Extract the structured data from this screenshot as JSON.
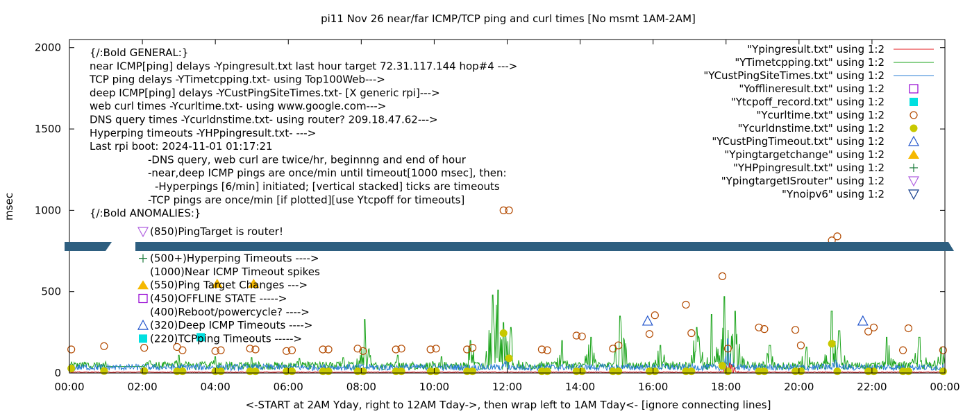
{
  "chart_data": {
    "type": "scatter",
    "title": "pi11 Nov 26  near/far ICMP/TCP ping and curl times [No msmt 1AM-2AM]",
    "xlabel": "<-START at 2AM Yday, right to 12AM Tday->, then wrap left to 1AM Tday<- [ignore connecting lines]",
    "ylabel": "msec",
    "xlim": [
      0,
      24
    ],
    "ylim": [
      0,
      2050
    ],
    "x_ticks": [
      "00:00",
      "02:00",
      "04:00",
      "06:00",
      "08:00",
      "10:00",
      "12:00",
      "14:00",
      "16:00",
      "18:00",
      "20:00",
      "22:00",
      "00:00"
    ],
    "y_ticks": [
      0,
      500,
      1000,
      1500,
      2000
    ],
    "grid": false,
    "legend_position": "top-right",
    "legend": [
      {
        "label": "\"Ypingresult.txt\" using 1:2",
        "marker": "line",
        "color": "#e41a1c"
      },
      {
        "label": "\"YTimetcpping.txt\" using 1:2",
        "marker": "line",
        "color": "#1aa31a"
      },
      {
        "label": "\"YCustPingSiteTimes.txt\" using 1:2",
        "marker": "line",
        "color": "#2b7fd4"
      },
      {
        "label": "\"Yofflineresult.txt\" using 1:2",
        "marker": "square-open",
        "color": "#9400d3"
      },
      {
        "label": "\"Ytcpoff_record.txt\" using 1:2",
        "marker": "square-filled",
        "color": "#00e0e0"
      },
      {
        "label": "\"Ycurltime.txt\" using 1:2",
        "marker": "circle-open",
        "color": "#b34a00"
      },
      {
        "label": "\"Ycurldnstime.txt\" using 1:2",
        "marker": "circle-filled",
        "color": "#c8c800"
      },
      {
        "label": "\"YCustPingTimeout.txt\" using 1:2",
        "marker": "triangle-open",
        "color": "#2255cc"
      },
      {
        "label": "\"Ypingtargetchange\" using 1:2",
        "marker": "triangle-filled",
        "color": "#f5b800"
      },
      {
        "label": "\"YHPpingresult.txt\" using 1:2",
        "marker": "plus",
        "color": "#1a7a3a"
      },
      {
        "label": "\"YpingtargetISrouter\" using 1:2",
        "marker": "triangle-down-open",
        "color": "#b060e0"
      },
      {
        "label": "\"Ynoipv6\" using 1:2",
        "marker": "triangle-down-open",
        "color": "#123c8c"
      }
    ],
    "annotations": [
      "{/:Bold GENERAL:}",
      "near ICMP[ping] delays -Ypingresult.txt last hour target 72.31.117.144 hop#4 --->",
      "TCP ping delays -YTimetcpping.txt- using Top100Web--->",
      "deep ICMP[ping] delays -YCustPingSiteTimes.txt- [X generic rpi]--->",
      "web curl times -Ycurltime.txt- using www.google.com--->",
      "DNS query times -Ycurldnstime.txt- using router? 209.18.47.62--->",
      "Hyperping timeouts -YHPpingresult.txt- --->",
      "Last rpi boot: 2024-11-01 01:17:21",
      "-DNS query, web curl are twice/hr, beginnng and end of hour",
      "-near,deep ICMP pings are once/min until timeout[1000 msec], then:",
      "-Hyperpings [6/min] initiated; [vertical stacked] ticks are timeouts",
      "-TCP pings are once/min [if plotted][use Ytcpoff for timeouts]",
      "{/:Bold ANOMALIES:}"
    ],
    "anomaly_legend": [
      {
        "label": "(850)PingTarget is router!",
        "y": 850,
        "marker": "triangle-down-open",
        "color": "#b060e0"
      },
      {
        "label": "(500+)Hyperping Timeouts ---->",
        "y": 500,
        "marker": "plus",
        "color": "#1a7a3a"
      },
      {
        "label": "(1000)Near ICMP Timeout spikes",
        "y": 1000,
        "marker": "none",
        "color": "#000000"
      },
      {
        "label": "(550)Ping Target Changes --->",
        "y": 550,
        "marker": "triangle-filled",
        "color": "#f5b800"
      },
      {
        "label": "(450)OFFLINE STATE ----->",
        "y": 450,
        "marker": "square-open",
        "color": "#9400d3"
      },
      {
        "label": "(400)Reboot/powercycle? ---->",
        "y": 400,
        "marker": "none",
        "color": "#000000"
      },
      {
        "label": "(320)Deep ICMP Timeouts ---->",
        "y": 320,
        "marker": "triangle-open",
        "color": "#2255cc"
      },
      {
        "label": "(220)TCPping Timeouts ----->",
        "y": 220,
        "marker": "square-filled",
        "color": "#00e0e0"
      }
    ],
    "series": [
      {
        "name": "\"Ycurltime.txt\" using 1:2",
        "marker": "circle-open",
        "color": "#b34a00",
        "points": [
          [
            0.05,
            145
          ],
          [
            0.95,
            165
          ],
          [
            2.05,
            155
          ],
          [
            2.95,
            160
          ],
          [
            3.1,
            140
          ],
          [
            4.0,
            135
          ],
          [
            4.15,
            140
          ],
          [
            4.95,
            150
          ],
          [
            5.1,
            145
          ],
          [
            5.95,
            135
          ],
          [
            6.1,
            140
          ],
          [
            6.95,
            145
          ],
          [
            7.1,
            145
          ],
          [
            7.9,
            150
          ],
          [
            8.05,
            135
          ],
          [
            8.95,
            145
          ],
          [
            9.1,
            150
          ],
          [
            9.9,
            145
          ],
          [
            10.05,
            150
          ],
          [
            10.9,
            145
          ],
          [
            11.05,
            155
          ],
          [
            11.9,
            1000
          ],
          [
            12.05,
            1000
          ],
          [
            12.95,
            145
          ],
          [
            13.1,
            140
          ],
          [
            13.9,
            230
          ],
          [
            14.05,
            225
          ],
          [
            14.9,
            150
          ],
          [
            15.05,
            170
          ],
          [
            15.9,
            240
          ],
          [
            16.05,
            355
          ],
          [
            16.9,
            420
          ],
          [
            17.05,
            245
          ],
          [
            17.9,
            595
          ],
          [
            18.05,
            150
          ],
          [
            18.9,
            280
          ],
          [
            19.05,
            270
          ],
          [
            19.9,
            265
          ],
          [
            20.05,
            170
          ],
          [
            20.9,
            815
          ],
          [
            21.05,
            840
          ],
          [
            21.9,
            255
          ],
          [
            22.05,
            280
          ],
          [
            22.85,
            140
          ],
          [
            23.0,
            275
          ],
          [
            23.95,
            140
          ]
        ]
      },
      {
        "name": "\"Ycurldnstime.txt\" using 1:2",
        "marker": "circle-filled",
        "color": "#c8c800",
        "points": [
          [
            0.05,
            28
          ],
          [
            0.95,
            12
          ],
          [
            2.05,
            12
          ],
          [
            2.95,
            10
          ],
          [
            3.1,
            10
          ],
          [
            4.0,
            10
          ],
          [
            4.15,
            10
          ],
          [
            4.95,
            10
          ],
          [
            5.1,
            10
          ],
          [
            5.95,
            10
          ],
          [
            6.1,
            10
          ],
          [
            6.95,
            10
          ],
          [
            7.1,
            10
          ],
          [
            7.9,
            10
          ],
          [
            8.05,
            10
          ],
          [
            8.95,
            10
          ],
          [
            9.1,
            10
          ],
          [
            9.9,
            10
          ],
          [
            10.05,
            10
          ],
          [
            10.9,
            10
          ],
          [
            11.05,
            10
          ],
          [
            11.9,
            245
          ],
          [
            12.05,
            90
          ],
          [
            12.95,
            10
          ],
          [
            13.1,
            10
          ],
          [
            13.9,
            10
          ],
          [
            14.05,
            10
          ],
          [
            14.9,
            10
          ],
          [
            15.05,
            10
          ],
          [
            15.9,
            10
          ],
          [
            16.05,
            10
          ],
          [
            16.9,
            10
          ],
          [
            17.05,
            10
          ],
          [
            17.9,
            45
          ],
          [
            18.05,
            10
          ],
          [
            18.9,
            10
          ],
          [
            19.05,
            10
          ],
          [
            19.9,
            10
          ],
          [
            20.05,
            10
          ],
          [
            20.9,
            180
          ],
          [
            21.05,
            10
          ],
          [
            21.9,
            10
          ],
          [
            22.05,
            10
          ],
          [
            22.85,
            10
          ],
          [
            23.0,
            10
          ],
          [
            23.95,
            10
          ]
        ]
      },
      {
        "name": "\"YCustPingTimeout.txt\" using 1:2",
        "marker": "triangle-open",
        "color": "#2255cc",
        "points": [
          [
            15.85,
            320
          ],
          [
            21.75,
            320
          ]
        ]
      },
      {
        "name": "\"Ypingtargetchange\" using 1:2",
        "marker": "triangle-filled",
        "color": "#f5b800",
        "points": [
          [
            4.05,
            550
          ],
          [
            5.05,
            550
          ]
        ]
      },
      {
        "name": "\"Ytcpoff_record.txt\" using 1:2",
        "marker": "square-filled",
        "color": "#00e0e0",
        "points": [
          [
            3.6,
            220
          ]
        ]
      },
      {
        "name": "\"YTimetcpping.txt\" using 1:2",
        "marker": "line",
        "color": "#1aa31a",
        "baseline": [
          20,
          70
        ],
        "spikes": [
          [
            0.5,
            60
          ],
          [
            2.2,
            75
          ],
          [
            3.0,
            110
          ],
          [
            4.0,
            100
          ],
          [
            5.0,
            95
          ],
          [
            6.3,
            90
          ],
          [
            7.5,
            95
          ],
          [
            8.1,
            330
          ],
          [
            9.0,
            110
          ],
          [
            10.2,
            100
          ],
          [
            11.0,
            200
          ],
          [
            11.6,
            480
          ],
          [
            11.75,
            510
          ],
          [
            11.9,
            310
          ],
          [
            12.1,
            280
          ],
          [
            13.5,
            200
          ],
          [
            14.3,
            220
          ],
          [
            15.1,
            350
          ],
          [
            16.2,
            170
          ],
          [
            17.2,
            280
          ],
          [
            17.6,
            360
          ],
          [
            17.95,
            470
          ],
          [
            18.25,
            380
          ],
          [
            19.2,
            170
          ],
          [
            20.2,
            160
          ],
          [
            20.9,
            380
          ],
          [
            21.1,
            260
          ],
          [
            22.4,
            220
          ],
          [
            23.3,
            220
          ],
          [
            23.9,
            160
          ]
        ]
      },
      {
        "name": "\"YCustPingSiteTimes.txt\" using 1:2",
        "marker": "line",
        "color": "#2b7fd4",
        "baseline": [
          15,
          55
        ],
        "spikes": [
          [
            18.05,
            210
          ],
          [
            12.0,
            90
          ],
          [
            21.0,
            80
          ]
        ]
      },
      {
        "name": "\"Ypingresult.txt\" using 1:2",
        "marker": "line",
        "color": "#e41a1c",
        "baseline": [
          3,
          8
        ],
        "spikes": [
          [
            18.1,
            60
          ]
        ]
      }
    ]
  }
}
